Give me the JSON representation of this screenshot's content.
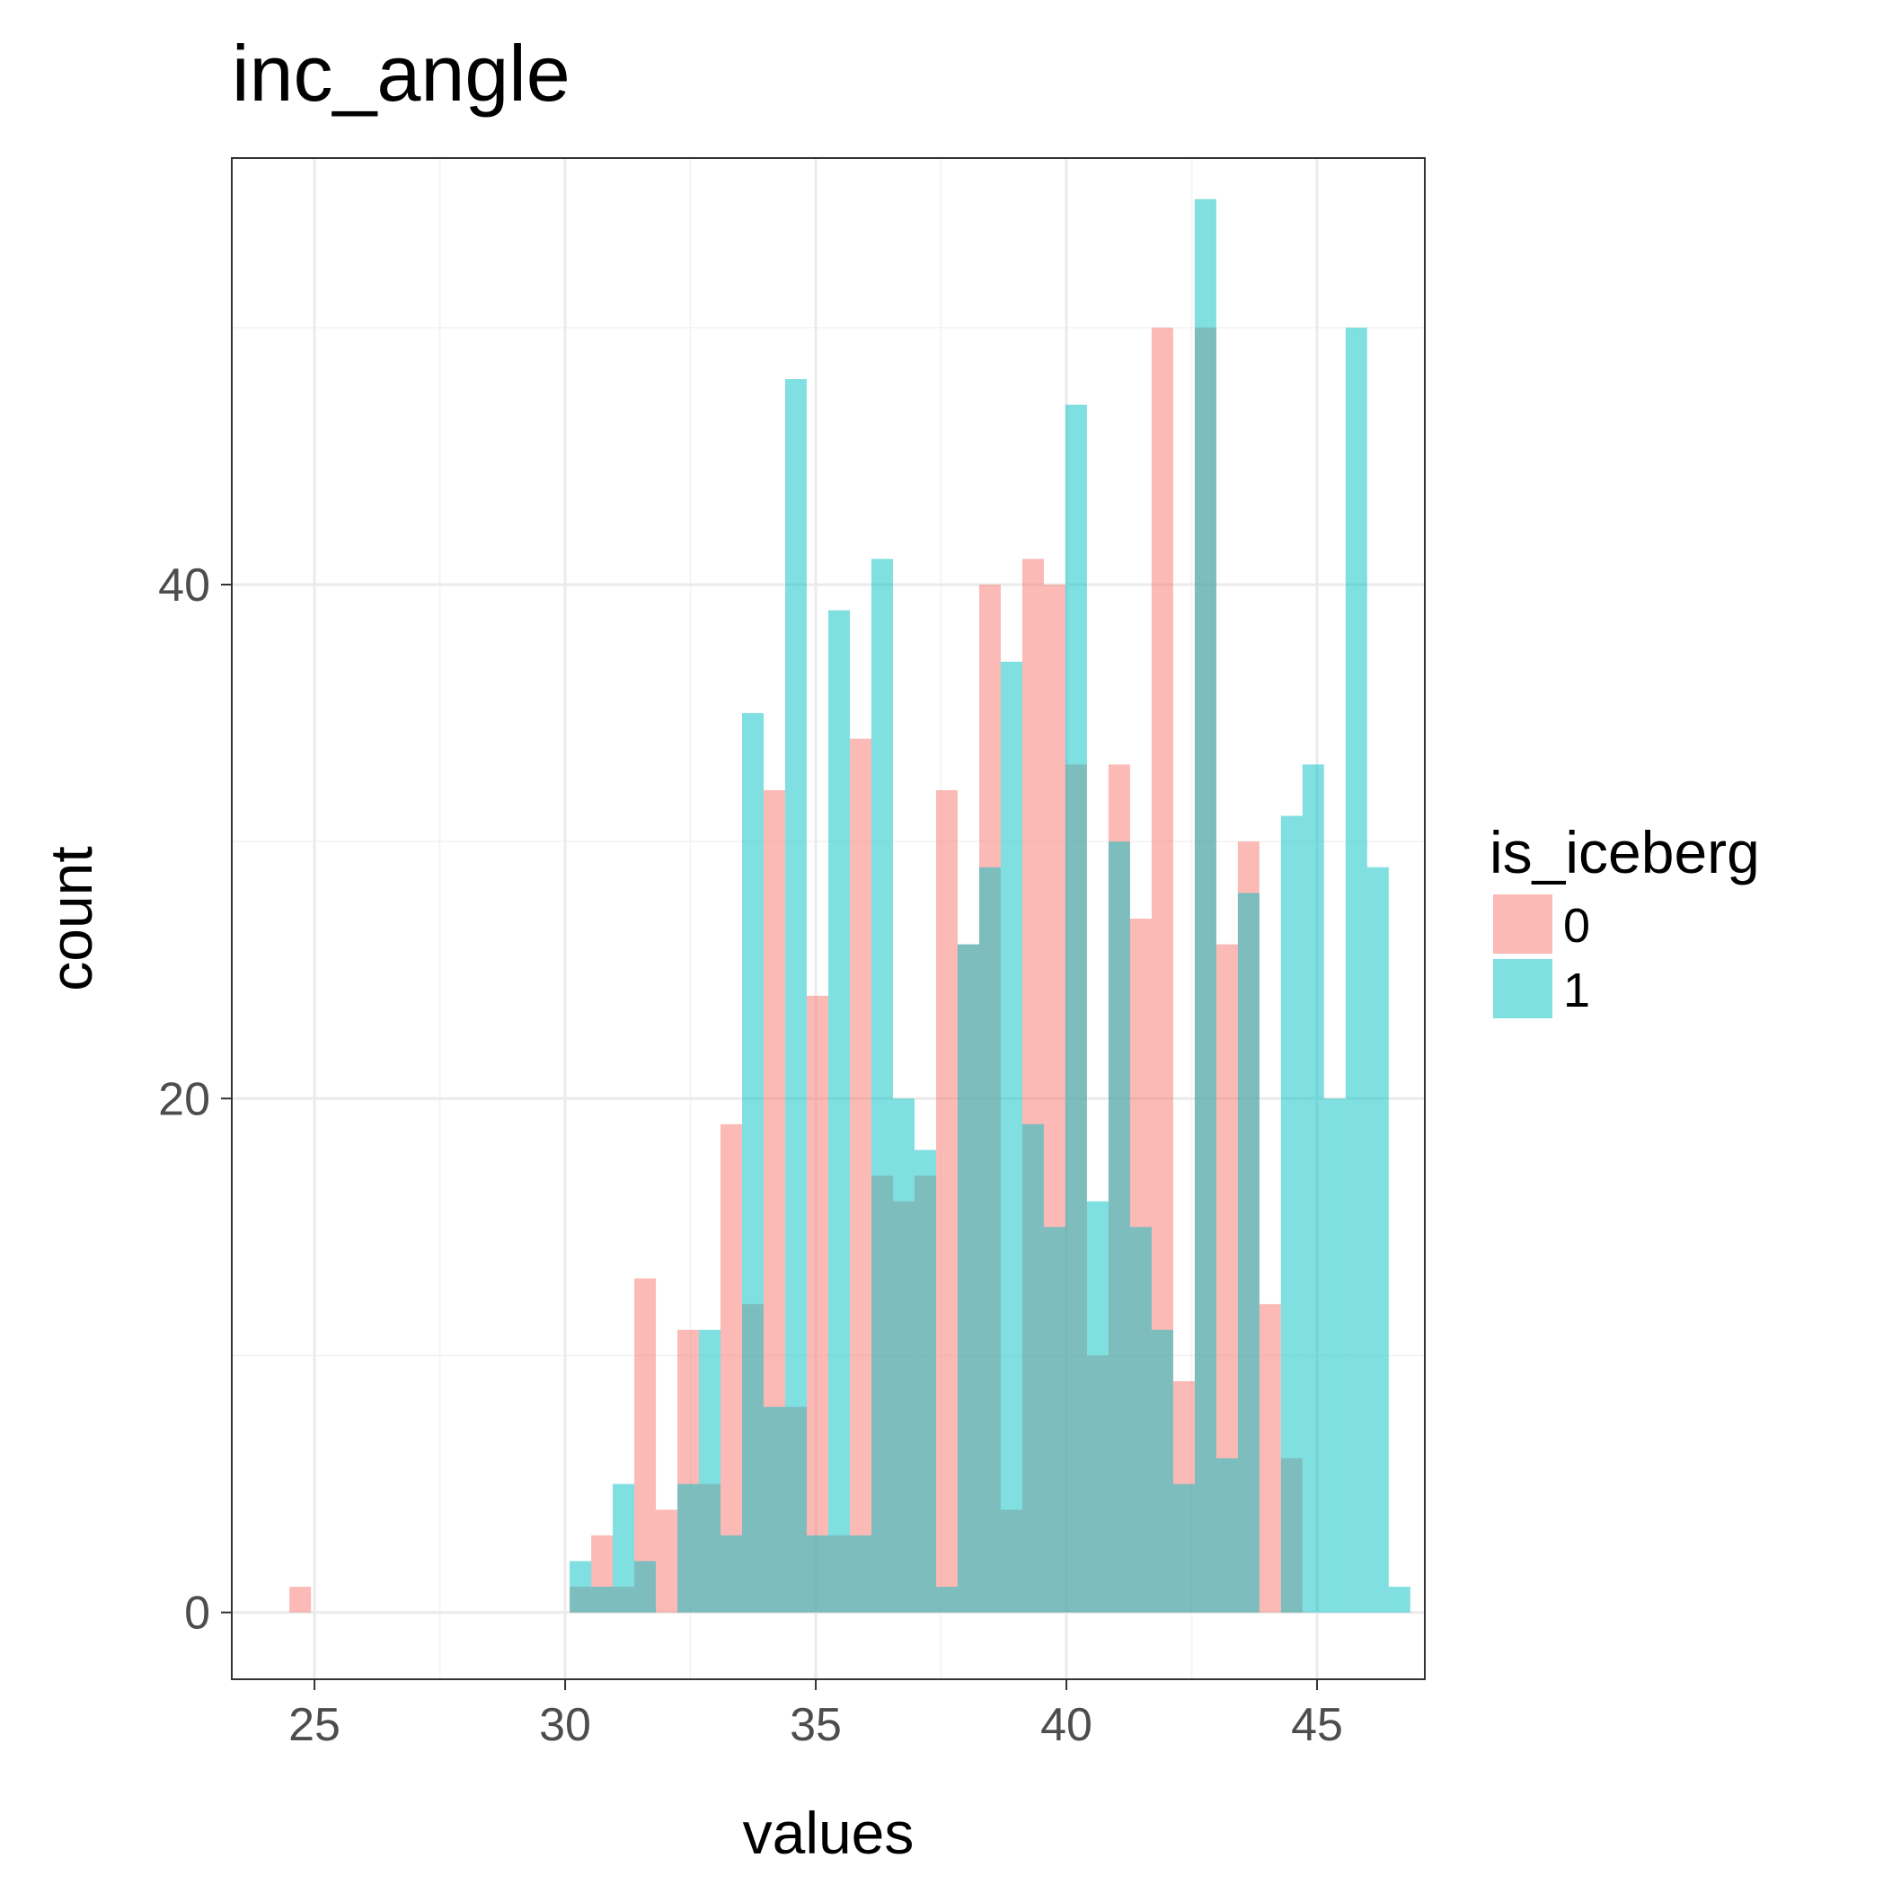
{
  "chart_data": {
    "type": "bar",
    "subtype": "overlaid histogram",
    "title": "inc_angle",
    "xlabel": "values",
    "ylabel": "count",
    "xlim": [
      23.35,
      47.15
    ],
    "ylim": [
      -2.6,
      56.6
    ],
    "x_ticks": [
      25,
      30,
      35,
      40,
      45
    ],
    "x_tick_labels": [
      "25",
      "30",
      "35",
      "40",
      "45"
    ],
    "y_ticks": [
      0,
      20,
      40
    ],
    "y_tick_labels": [
      "0",
      "20",
      "40"
    ],
    "bin_start": 24.5,
    "bin_width": 0.43,
    "grid": true,
    "legend": {
      "title": "is_iceberg",
      "position": "right",
      "entries": [
        {
          "label": "0",
          "color": "#F8766D"
        },
        {
          "label": "1",
          "color": "#00BFC4"
        }
      ]
    },
    "series": [
      {
        "name": "0",
        "color": "#F8766D",
        "values": [
          1,
          0,
          0,
          0,
          0,
          0,
          0,
          0,
          0,
          0,
          0,
          0,
          0,
          1,
          3,
          1,
          13,
          4,
          11,
          5,
          19,
          12,
          32,
          8,
          24,
          3,
          34,
          17,
          16,
          17,
          32,
          26,
          40,
          4,
          41,
          40,
          33,
          10,
          33,
          27,
          50,
          9,
          50,
          26,
          30,
          12,
          6
        ]
      },
      {
        "name": "1",
        "color": "#00BFC4",
        "values": [
          0,
          0,
          0,
          0,
          0,
          0,
          0,
          0,
          0,
          0,
          0,
          0,
          0,
          2,
          1,
          5,
          2,
          0,
          5,
          11,
          3,
          35,
          8,
          48,
          3,
          39,
          3,
          41,
          20,
          18,
          1,
          26,
          29,
          37,
          19,
          15,
          47,
          16,
          30,
          15,
          11,
          5,
          55,
          6,
          28,
          0,
          31,
          33,
          20,
          50,
          29,
          1
        ]
      }
    ]
  }
}
